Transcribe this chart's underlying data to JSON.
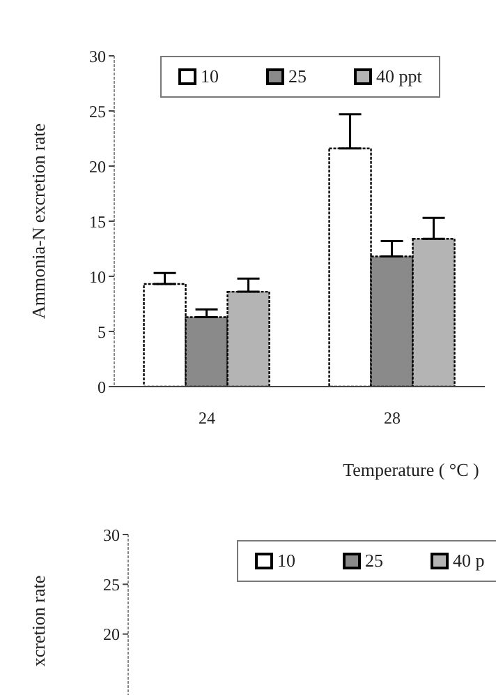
{
  "chart_data": [
    {
      "type": "bar",
      "ylabel": "Ammonia-N excretion rate",
      "xlabel": "Temperature ( °C )",
      "categories": [
        "24",
        "28"
      ],
      "ylim": [
        0,
        30
      ],
      "yticks": [
        0,
        5,
        10,
        15,
        20,
        25,
        30
      ],
      "legend": "top right",
      "grid": false,
      "series": [
        {
          "name": "10",
          "color": "#ffffff",
          "values": [
            9.3,
            21.6
          ],
          "errors": [
            [
              9.3,
              10.3
            ],
            [
              21.6,
              24.7
            ]
          ]
        },
        {
          "name": "25",
          "color": "#8a8a8a",
          "values": [
            6.3,
            11.8
          ],
          "errors": [
            [
              6.3,
              7.0
            ],
            [
              11.8,
              13.2
            ]
          ]
        },
        {
          "name": "40 ppt",
          "color": "#b4b4b4",
          "values": [
            8.6,
            13.4
          ],
          "errors": [
            [
              8.6,
              9.8
            ],
            [
              13.4,
              15.3
            ]
          ]
        }
      ]
    },
    {
      "type": "bar",
      "ylabel": "xcretion rate",
      "categories": [
        null,
        null
      ],
      "ylim": [
        0,
        30
      ],
      "yticks": [
        20,
        25,
        30
      ],
      "legend": "top right",
      "grid": false,
      "series": [
        {
          "name": "10",
          "color": "#ffffff",
          "values": [
            null,
            null
          ]
        },
        {
          "name": "25",
          "color": "#8a8a8a",
          "values": [
            null,
            null
          ]
        },
        {
          "name": "40 p",
          "color": "#b4b4b4",
          "values": [
            null,
            null
          ]
        }
      ]
    }
  ]
}
